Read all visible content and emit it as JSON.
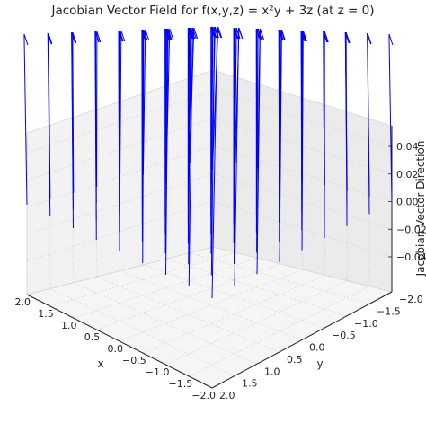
{
  "chart_data": {
    "type": "quiver3d",
    "title": "Jacobian Vector Field for f(x,y,z) = x²y + 3z (at z = 0)",
    "xlabel": "x",
    "ylabel": "y",
    "zlabel": "Jacobian Vector Direction",
    "xlim": [
      -2.0,
      2.0
    ],
    "ylim": [
      -2.0,
      2.0
    ],
    "zlim": [
      -0.05,
      0.05
    ],
    "x_ticks": [
      "2.0",
      "1.5",
      "1.0",
      "0.5",
      "0.0",
      "−0.5",
      "−1.0",
      "−1.5",
      "−2.0"
    ],
    "y_ticks": [
      "2.0",
      "1.5",
      "1.0",
      "0.5",
      "0.0",
      "−0.5",
      "−1.0",
      "−1.5",
      "−2.0"
    ],
    "z_ticks": [
      "0.04",
      "0.02",
      "0.00",
      "−0.02",
      "−0.04"
    ],
    "grid": true,
    "arrow_color": "#0000ff"
  }
}
